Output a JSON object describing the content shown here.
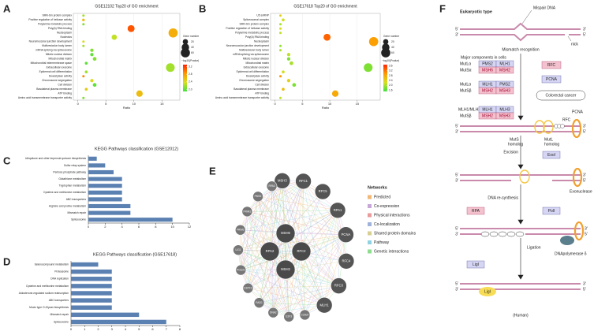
{
  "panel_labels": [
    "A",
    "B",
    "C",
    "D",
    "E",
    "F"
  ],
  "chart_data": [
    {
      "type": "bubble",
      "title": "GSE12102 Top20 of GO enrichment",
      "xlabel": "Ratio",
      "categories": [
        "SMN-Sm protein complex",
        "Positive regulation of helicase activity",
        "Polyamine metabolic process",
        "Poly(A) RNA binding",
        "Nucleoplasm",
        "Nucleolus",
        "Neuromuscular junction development",
        "Multivesicular body lumen",
        "mRNA splicing via spliceosome",
        "Mitotic nuclear division",
        "Mitochondrial matrix",
        "Mitochondrial intermembrane space",
        "Extracellular exosome",
        "Epidermal cell differentiation",
        "Deacetylase activity",
        "Chromosome segregation",
        "Cell division",
        "Basolateral plasma membrane",
        "ATP binding",
        "Amino acid transmembrane transporter activity"
      ],
      "x": [
        1,
        1,
        1,
        9.5,
        17,
        6.5,
        1,
        1,
        2.5,
        2.5,
        3,
        1.5,
        16.5,
        1.5,
        1,
        2.5,
        3,
        1.5,
        11,
        1
      ],
      "sizes": [
        4,
        5,
        4,
        35,
        60,
        20,
        4,
        4,
        8,
        8,
        10,
        6,
        55,
        6,
        4,
        8,
        10,
        6,
        30,
        4
      ],
      "color_values": [
        2.2,
        2.6,
        2.1,
        3.1,
        2.7,
        2.3,
        2.4,
        2.2,
        2.1,
        2.0,
        2.1,
        2.0,
        2.2,
        2.2,
        2.9,
        2.4,
        2.0,
        2.5,
        2.6,
        2.1
      ],
      "xlim": [
        -0.8,
        18.2
      ],
      "xticks": [
        0,
        5,
        10,
        15
      ],
      "grid": true,
      "size_legend": {
        "title": "Gene number",
        "values": [
          20,
          40,
          60
        ]
      },
      "color_legend": {
        "title": "−log10(Pvalue)",
        "ticks": [
          {
            "value": 2,
            "label": "2.0"
          },
          2.4,
          2.8,
          3.2
        ]
      },
      "clim": [
        1.9,
        3.3
      ],
      "colorscale": [
        "#40e040",
        "#d8e020",
        "#ff9900",
        "#ff2200"
      ]
    },
    {
      "type": "bubble",
      "title": "GSE17618 Top20 of GO enrichment",
      "xlabel": "Ratio",
      "categories": [
        "U5 snRNP",
        "Spliceosomal complex",
        "SMN-Sm protein complex",
        "Positive regulation of helicase activity",
        "Polyamine metabolic process",
        "Poly(A) RNA binding",
        "Nucleoplasm",
        "Neuromuscular junction development",
        "Multivesicular body lumen",
        "mRNA splicing via spliceosome",
        "Mitotic nuclear division",
        "Mitochondrial matrix",
        "Extracellular exosome",
        "Epidermal cell differentiation",
        "Deacetylase activity",
        "Chromosome segregation",
        "Cell division",
        "Basolateral plasma membrane",
        "ATP binding",
        "Amino acid transmembrane transporter activity"
      ],
      "x": [
        1,
        1.5,
        1,
        1,
        1,
        9.5,
        18,
        1,
        1,
        2.5,
        2.5,
        3,
        17,
        1.5,
        1,
        2.5,
        3.5,
        1.5,
        11,
        1
      ],
      "sizes": [
        4,
        6,
        4,
        4,
        4,
        35,
        60,
        4,
        4,
        8,
        8,
        10,
        55,
        6,
        4,
        8,
        10,
        6,
        30,
        4
      ],
      "color_values": [
        2.4,
        2.2,
        2.0,
        2.3,
        2.1,
        3.3,
        2.9,
        1.9,
        2.0,
        2.1,
        1.8,
        2.0,
        1.8,
        2.2,
        3.0,
        2.4,
        1.8,
        2.6,
        2.8,
        2.1
      ],
      "xlim": [
        -0.8,
        19.2
      ],
      "xticks": [
        0,
        5,
        10,
        15
      ],
      "grid": true,
      "size_legend": {
        "title": "Gene number",
        "values": [
          20,
          40,
          60
        ]
      },
      "color_legend": {
        "title": "−log10(Pvalue)",
        "ticks": [
          1.6,
          {
            "value": 2,
            "label": "2.0"
          },
          2.4,
          2.8,
          3.2,
          3.6
        ]
      },
      "clim": [
        1.5,
        3.7
      ],
      "colorscale": [
        "#40e040",
        "#d8e020",
        "#ff9900",
        "#ff2200"
      ]
    },
    {
      "type": "hbar",
      "title": "KEGG Pathways classification (GSE12012)",
      "categories": [
        "Ubiquitone and other terpenoid quinone biosynthesis",
        "Sulfur relay system",
        "Pentose phosphate pathway",
        "Glutathione metabolism",
        "Tryptophan metabolism",
        "Cysteine and methionine metabolism",
        "ABC transporters",
        "Arginine and proline metabolism",
        "Mismatch repair",
        "Spliceosome"
      ],
      "values": [
        1,
        2,
        3,
        4,
        4,
        4,
        4,
        5,
        5,
        10
      ],
      "color": "#5b80b2",
      "xlim": [
        0,
        12
      ],
      "xticks": [
        0,
        2,
        4,
        6,
        8,
        10,
        12
      ]
    },
    {
      "type": "hbar",
      "title": "KEGG Pathways classification (GSE17618)",
      "categories": [
        "Selenocompound metabolism",
        "Proteasome",
        "DNA replication",
        "Cysteine and methionine metabolism",
        "Aldosterone-regulated sodium reabsorption",
        "ABC transporters",
        "Mucin type O-Glycan biosynthesis",
        "Mismatch repair",
        "Spliceosome"
      ],
      "values": [
        2,
        3,
        3,
        3,
        3,
        3,
        3,
        5,
        7
      ],
      "color": "#5b80b2",
      "xlim": [
        0,
        8
      ],
      "xticks": [
        0,
        1,
        2,
        3,
        4,
        5,
        6,
        7,
        8
      ]
    }
  ],
  "network": {
    "title": "Networks",
    "center_nodes": [
      "MSH6",
      "RPA2",
      "RFC2",
      "MSH2"
    ],
    "ring_nodes": [
      "MSH3",
      "RFC1",
      "RFC5",
      "RPA1",
      "PCNA",
      "RFC4",
      "RFC3",
      "MLH1"
    ],
    "small_nodes": [
      "C20orf",
      "E2F3",
      "DNA2",
      "RAD1",
      "ESTF2",
      "POLD1",
      "LIG1",
      "PRIM2",
      "PRIM1",
      "PMS2",
      "RPA3"
    ],
    "legend": [
      {
        "name": "Predicted",
        "color": "#f2b774"
      },
      {
        "name": "Co-expression",
        "color": "#c9a6d8"
      },
      {
        "name": "Physical interactions",
        "color": "#e99a9a"
      },
      {
        "name": "Co-localization",
        "color": "#9fb2dc"
      },
      {
        "name": "Shared protein domains",
        "color": "#d8cf92"
      },
      {
        "name": "Pathway",
        "color": "#8fd3e3"
      },
      {
        "name": "Genetic interactions",
        "color": "#8edc8e"
      }
    ]
  },
  "pathway": {
    "title": "Eukaryotic type",
    "strand_ends": [
      "5'",
      "3'"
    ],
    "mispair": "Mispair DNA",
    "nick": "nick",
    "steps": [
      "Mismatch recognition",
      "Excision",
      "DNA re-synthesis",
      "Ligation"
    ],
    "components_title": "Major components in cells",
    "complexes": [
      {
        "name": "MutLα",
        "parts": [
          "PMS2",
          "MLH1"
        ]
      },
      {
        "name": "MutSα",
        "parts": [
          "MSH6",
          "MSH2"
        ]
      },
      {
        "name": "MutLα",
        "parts": [
          "MLH1",
          "PMS2"
        ]
      },
      {
        "name": "MutSβ",
        "parts": [
          "MSH2",
          "MSH3"
        ]
      },
      {
        "name": "MLH1/MLH3",
        "parts": [
          "MLH1",
          "MLH3"
        ]
      },
      {
        "name": "MutSβ",
        "parts": [
          "MSH2",
          "MSH3"
        ]
      }
    ],
    "factors": [
      "RFC",
      "PCNA",
      "ExoI",
      "RPA",
      "PolI",
      "LigI"
    ],
    "disease": "Colorectal cancer",
    "annotations": [
      "PCNA",
      "RFC",
      "MutS",
      "homolog",
      "MutL",
      "homolog",
      "Exonuclease",
      "DNApolymerase δ",
      "LigI"
    ],
    "species": "(Human)"
  }
}
